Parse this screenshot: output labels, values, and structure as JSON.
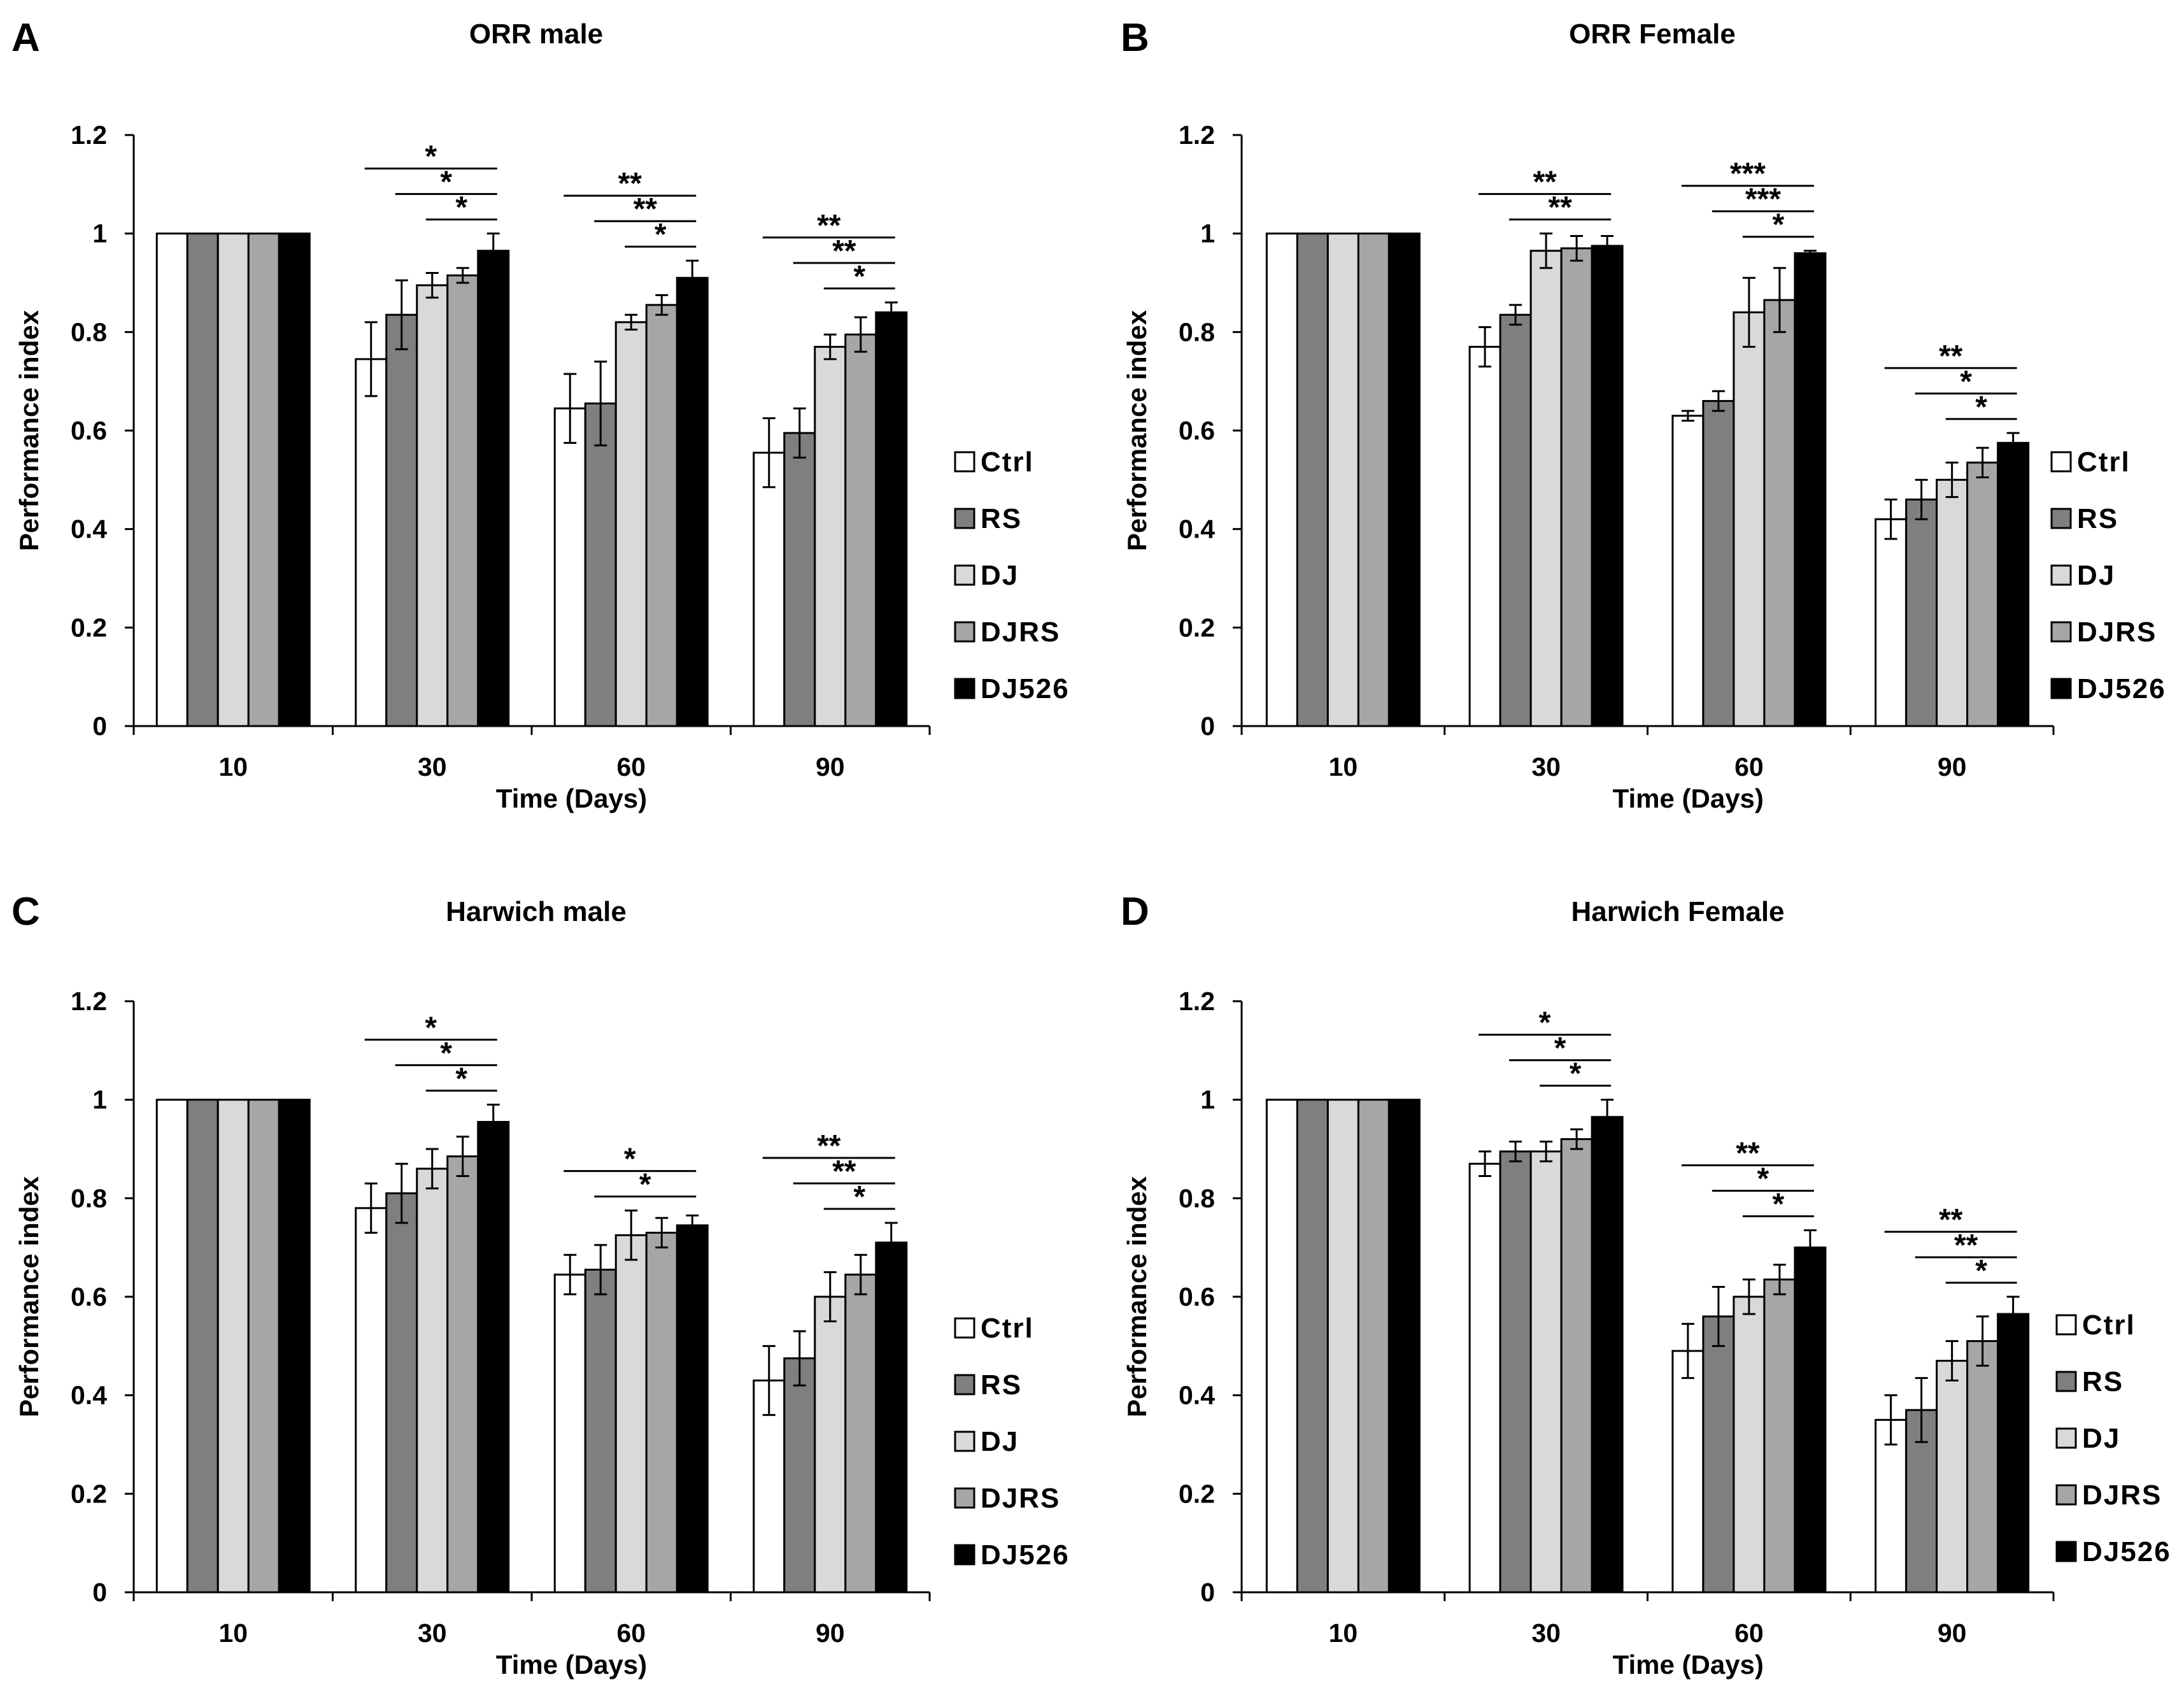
{
  "figure": {
    "panels": [
      "A",
      "B",
      "C",
      "D"
    ]
  },
  "chart_data": [
    {
      "panel": "A",
      "type": "bar",
      "title": "ORR male",
      "xlabel": "Time (Days)",
      "ylabel": "Performance index",
      "ylim": [
        0,
        1.2
      ],
      "yticks": [
        "0",
        "0.2",
        "0.4",
        "0.6",
        "0.8",
        "1",
        "1.2"
      ],
      "categories": [
        "10",
        "30",
        "60",
        "90"
      ],
      "series": [
        {
          "name": "Ctrl",
          "color": "#ffffff",
          "values": [
            1,
            0.745,
            0.645,
            0.555
          ],
          "errors": [
            0,
            0.075,
            0.07,
            0.07
          ]
        },
        {
          "name": "RS",
          "color": "#7f7f7f",
          "values": [
            1,
            0.835,
            0.655,
            0.595
          ],
          "errors": [
            0,
            0.07,
            0.085,
            0.05
          ]
        },
        {
          "name": "DJ",
          "color": "#d9d9d9",
          "values": [
            1,
            0.895,
            0.82,
            0.77
          ],
          "errors": [
            0,
            0.025,
            0.015,
            0.025
          ]
        },
        {
          "name": "DJRS",
          "color": "#a6a6a6",
          "values": [
            1,
            0.915,
            0.855,
            0.795
          ],
          "errors": [
            0,
            0.015,
            0.02,
            0.035
          ]
        },
        {
          "name": "DJ526",
          "color": "#000000",
          "values": [
            1,
            0.965,
            0.91,
            0.84
          ],
          "errors": [
            0,
            0.035,
            0.035,
            0.02
          ]
        }
      ],
      "significance": [
        {
          "category": "30",
          "lines": [
            {
              "from": "Ctrl",
              "label": "*"
            },
            {
              "from": "RS",
              "label": "*"
            },
            {
              "from": "DJ",
              "label": "*"
            }
          ]
        },
        {
          "category": "60",
          "lines": [
            {
              "from": "Ctrl",
              "label": "**"
            },
            {
              "from": "RS",
              "label": "**"
            },
            {
              "from": "DJ",
              "label": "*"
            }
          ]
        },
        {
          "category": "90",
          "lines": [
            {
              "from": "Ctrl",
              "label": "**"
            },
            {
              "from": "RS",
              "label": "**"
            },
            {
              "from": "DJ",
              "label": "*"
            }
          ]
        }
      ],
      "legend": [
        "Ctrl",
        "RS",
        "DJ",
        "DJRS",
        "DJ526"
      ]
    },
    {
      "panel": "B",
      "type": "bar",
      "title": "ORR Female",
      "xlabel": "Time (Days)",
      "ylabel": "Performance index",
      "ylim": [
        0,
        1.2
      ],
      "yticks": [
        "0",
        "0.2",
        "0.4",
        "0.6",
        "0.8",
        "1",
        "1.2"
      ],
      "categories": [
        "10",
        "30",
        "60",
        "90"
      ],
      "series": [
        {
          "name": "Ctrl",
          "color": "#ffffff",
          "values": [
            1,
            0.77,
            0.63,
            0.42
          ],
          "errors": [
            0,
            0.04,
            0.01,
            0.04
          ]
        },
        {
          "name": "RS",
          "color": "#7f7f7f",
          "values": [
            1,
            0.835,
            0.66,
            0.46
          ],
          "errors": [
            0,
            0.02,
            0.02,
            0.04
          ]
        },
        {
          "name": "DJ",
          "color": "#d9d9d9",
          "values": [
            1,
            0.965,
            0.84,
            0.5
          ],
          "errors": [
            0,
            0.035,
            0.07,
            0.035
          ]
        },
        {
          "name": "DJRS",
          "color": "#a6a6a6",
          "values": [
            1,
            0.97,
            0.865,
            0.535
          ],
          "errors": [
            0,
            0.025,
            0.065,
            0.03
          ]
        },
        {
          "name": "DJ526",
          "color": "#000000",
          "values": [
            1,
            0.975,
            0.96,
            0.575
          ],
          "errors": [
            0,
            0.02,
            0.005,
            0.02
          ]
        }
      ],
      "significance": [
        {
          "category": "30",
          "lines": [
            {
              "from": "Ctrl",
              "label": "**"
            },
            {
              "from": "RS",
              "label": "**"
            }
          ]
        },
        {
          "category": "60",
          "lines": [
            {
              "from": "Ctrl",
              "label": "***"
            },
            {
              "from": "RS",
              "label": "***"
            },
            {
              "from": "DJ",
              "label": "*"
            }
          ]
        },
        {
          "category": "90",
          "lines": [
            {
              "from": "Ctrl",
              "label": "**"
            },
            {
              "from": "RS",
              "label": "*"
            },
            {
              "from": "DJ",
              "label": "*"
            }
          ]
        }
      ],
      "legend": [
        "Ctrl",
        "RS",
        "DJ",
        "DJRS",
        "DJ526"
      ]
    },
    {
      "panel": "C",
      "type": "bar",
      "title": "Harwich male",
      "xlabel": "Time (Days)",
      "ylabel": "Performance index",
      "ylim": [
        0,
        1.2
      ],
      "yticks": [
        "0",
        "0.2",
        "0.4",
        "0.6",
        "0.8",
        "1",
        "1.2"
      ],
      "categories": [
        "10",
        "30",
        "60",
        "90"
      ],
      "series": [
        {
          "name": "Ctrl",
          "color": "#ffffff",
          "values": [
            1,
            0.78,
            0.645,
            0.43
          ],
          "errors": [
            0,
            0.05,
            0.04,
            0.07
          ]
        },
        {
          "name": "RS",
          "color": "#7f7f7f",
          "values": [
            1,
            0.81,
            0.655,
            0.475
          ],
          "errors": [
            0,
            0.06,
            0.05,
            0.055
          ]
        },
        {
          "name": "DJ",
          "color": "#d9d9d9",
          "values": [
            1,
            0.86,
            0.725,
            0.6
          ],
          "errors": [
            0,
            0.04,
            0.05,
            0.05
          ]
        },
        {
          "name": "DJRS",
          "color": "#a6a6a6",
          "values": [
            1,
            0.885,
            0.73,
            0.645
          ],
          "errors": [
            0,
            0.04,
            0.03,
            0.04
          ]
        },
        {
          "name": "DJ526",
          "color": "#000000",
          "values": [
            1,
            0.955,
            0.745,
            0.71
          ],
          "errors": [
            0,
            0.035,
            0.02,
            0.04
          ]
        }
      ],
      "significance": [
        {
          "category": "30",
          "lines": [
            {
              "from": "Ctrl",
              "label": "*"
            },
            {
              "from": "RS",
              "label": "*"
            },
            {
              "from": "DJ",
              "label": "*"
            }
          ]
        },
        {
          "category": "60",
          "lines": [
            {
              "from": "Ctrl",
              "label": "*"
            },
            {
              "from": "RS",
              "label": "*"
            }
          ]
        },
        {
          "category": "90",
          "lines": [
            {
              "from": "Ctrl",
              "label": "**"
            },
            {
              "from": "RS",
              "label": "**"
            },
            {
              "from": "DJ",
              "label": "*"
            }
          ]
        }
      ],
      "legend": [
        "Ctrl",
        "RS",
        "DJ",
        "DJRS",
        "DJ526"
      ]
    },
    {
      "panel": "D",
      "type": "bar",
      "title": "Harwich Female",
      "xlabel": "Time (Days)",
      "ylabel": "Performance index",
      "ylim": [
        0,
        1.2
      ],
      "yticks": [
        "0",
        "0.2",
        "0.4",
        "0.6",
        "0.8",
        "1",
        "1.2"
      ],
      "categories": [
        "10",
        "30",
        "60",
        "90"
      ],
      "series": [
        {
          "name": "Ctrl",
          "color": "#ffffff",
          "values": [
            1,
            0.87,
            0.49,
            0.35
          ],
          "errors": [
            0,
            0.025,
            0.055,
            0.05
          ]
        },
        {
          "name": "RS",
          "color": "#7f7f7f",
          "values": [
            1,
            0.895,
            0.56,
            0.37
          ],
          "errors": [
            0,
            0.02,
            0.06,
            0.065
          ]
        },
        {
          "name": "DJ",
          "color": "#d9d9d9",
          "values": [
            1,
            0.895,
            0.6,
            0.47
          ],
          "errors": [
            0,
            0.02,
            0.035,
            0.04
          ]
        },
        {
          "name": "DJRS",
          "color": "#a6a6a6",
          "values": [
            1,
            0.92,
            0.635,
            0.51
          ],
          "errors": [
            0,
            0.02,
            0.03,
            0.05
          ]
        },
        {
          "name": "DJ526",
          "color": "#000000",
          "values": [
            1,
            0.965,
            0.7,
            0.565
          ],
          "errors": [
            0,
            0.035,
            0.035,
            0.035
          ]
        }
      ],
      "significance": [
        {
          "category": "30",
          "lines": [
            {
              "from": "Ctrl",
              "label": "*"
            },
            {
              "from": "RS",
              "label": "*"
            },
            {
              "from": "DJ",
              "label": "*"
            }
          ]
        },
        {
          "category": "60",
          "lines": [
            {
              "from": "Ctrl",
              "label": "**"
            },
            {
              "from": "RS",
              "label": "*"
            },
            {
              "from": "DJ",
              "label": "*"
            }
          ]
        },
        {
          "category": "90",
          "lines": [
            {
              "from": "Ctrl",
              "label": "**"
            },
            {
              "from": "RS",
              "label": "**"
            },
            {
              "from": "DJ",
              "label": "*"
            }
          ]
        }
      ],
      "legend": [
        "Ctrl",
        "RS",
        "DJ",
        "DJRS",
        "DJ526"
      ]
    }
  ]
}
